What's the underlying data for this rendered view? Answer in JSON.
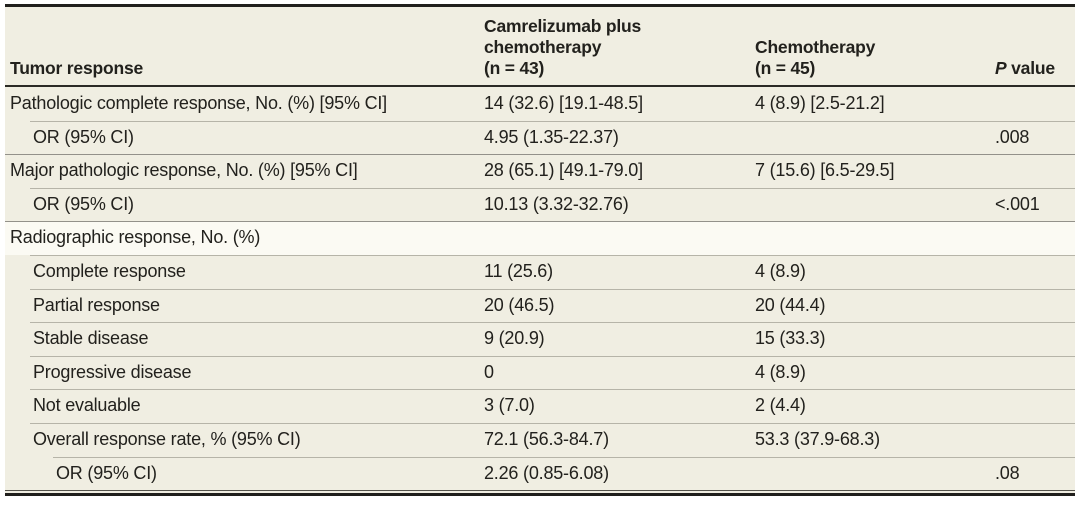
{
  "table": {
    "header": {
      "col1": "Tumor response",
      "col2": {
        "label": "Camrelizumab plus chemotherapy",
        "n": "(n = 43)"
      },
      "col3": {
        "label": "Chemotherapy",
        "n": "(n = 45)"
      },
      "col4": {
        "italic": "P",
        "rest": " value"
      }
    },
    "rows": [
      {
        "label": "Pathologic complete response, No. (%) [95% CI]",
        "level": 0,
        "col2": "14 (32.6) [19.1-48.5]",
        "col3": "4 (8.9) [2.5-21.2]",
        "p": "",
        "shaded": true
      },
      {
        "label": "OR (95% CI)",
        "level": 1,
        "col2": "4.95 (1.35-22.37)",
        "col3": "",
        "p": ".008",
        "shaded": true
      },
      {
        "label": "Major pathologic response, No. (%) [95% CI]",
        "level": 0,
        "col2": "28 (65.1) [49.1-79.0]",
        "col3": "7 (15.6) [6.5-29.5]",
        "p": "",
        "shaded": true
      },
      {
        "label": "OR (95% CI)",
        "level": 1,
        "col2": "10.13 (3.32-32.76)",
        "col3": "",
        "p": "<.001",
        "shaded": true
      },
      {
        "label": "Radiographic response, No. (%)",
        "level": 0,
        "col2": "",
        "col3": "",
        "p": "",
        "shaded": false
      },
      {
        "label": "Complete response",
        "level": 1,
        "col2": "11 (25.6)",
        "col3": "4 (8.9)",
        "p": "",
        "shaded": true
      },
      {
        "label": "Partial response",
        "level": 1,
        "col2": "20 (46.5)",
        "col3": "20 (44.4)",
        "p": "",
        "shaded": true
      },
      {
        "label": "Stable disease",
        "level": 1,
        "col2": "9 (20.9)",
        "col3": "15 (33.3)",
        "p": "",
        "shaded": true
      },
      {
        "label": "Progressive disease",
        "level": 1,
        "col2": "0",
        "col3": "4 (8.9)",
        "p": "",
        "shaded": true
      },
      {
        "label": "Not evaluable",
        "level": 1,
        "col2": "3 (7.0)",
        "col3": "2 (4.4)",
        "p": "",
        "shaded": true
      },
      {
        "label": "Overall response rate, % (95% CI)",
        "level": 1,
        "col2": "72.1 (56.3-84.7)",
        "col3": "53.3 (37.9-68.3)",
        "p": "",
        "shaded": true
      },
      {
        "label": "OR (95% CI)",
        "level": 2,
        "col2": "2.26 (0.85-6.08)",
        "col3": "",
        "p": ".08",
        "shaded": true
      }
    ],
    "colors": {
      "row_shade": "#f0eee2",
      "row_unshaded": "#fbfaf3",
      "rule_dark": "#201f1c",
      "separator_light": "#b6b4a8",
      "separator_medium": "#93918a",
      "text": "#22211d"
    }
  }
}
